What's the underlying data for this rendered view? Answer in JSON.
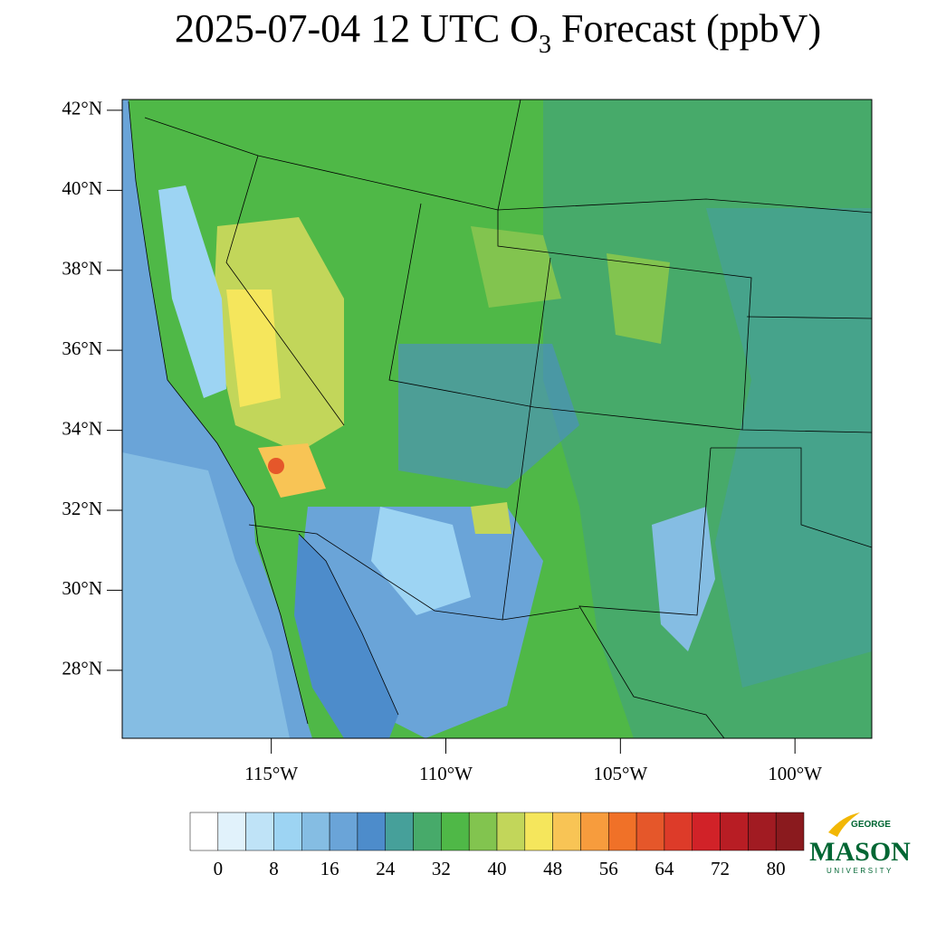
{
  "map": {
    "title_main": "2025-07-04 12 UTC O",
    "title_sub": "3",
    "title_tail": " Forecast (ppbV)",
    "lat_lim": [
      26.3,
      42.27
    ],
    "lon_lim": [
      -119.27,
      -97.8
    ],
    "lat_ticks": [
      {
        "value": 42,
        "label": "42°N"
      },
      {
        "value": 40,
        "label": "40°N"
      },
      {
        "value": 38,
        "label": "38°N"
      },
      {
        "value": 36,
        "label": "36°N"
      },
      {
        "value": 34,
        "label": "34°N"
      },
      {
        "value": 32,
        "label": "32°N"
      },
      {
        "value": 30,
        "label": "30°N"
      },
      {
        "value": 28,
        "label": "28°N"
      }
    ],
    "lon_ticks": [
      {
        "value": -115,
        "label": "115°W"
      },
      {
        "value": -110,
        "label": "110°W"
      },
      {
        "value": -105,
        "label": "105°W"
      },
      {
        "value": -100,
        "label": "100°W"
      }
    ]
  },
  "colorbar": {
    "lim": [
      -4,
      84
    ],
    "ticks": [
      0,
      8,
      16,
      24,
      32,
      40,
      48,
      56,
      64,
      72,
      80
    ],
    "colors": [
      "#ffffff",
      "#e1f2fb",
      "#bfe3f7",
      "#9dd4f3",
      "#85bde3",
      "#6aa4d8",
      "#4d8ccb",
      "#46a09a",
      "#47aa6a",
      "#4fb847",
      "#82c44f",
      "#c2d65a",
      "#f5e65c",
      "#f8c455",
      "#f79c3d",
      "#f07128",
      "#e5572a",
      "#dd3b29",
      "#d12228",
      "#b81d24",
      "#a11b22",
      "#8a1a1e"
    ]
  },
  "logo": {
    "top": "GEORGE",
    "main": "MASON",
    "bottom": "UNIVERSITY"
  }
}
